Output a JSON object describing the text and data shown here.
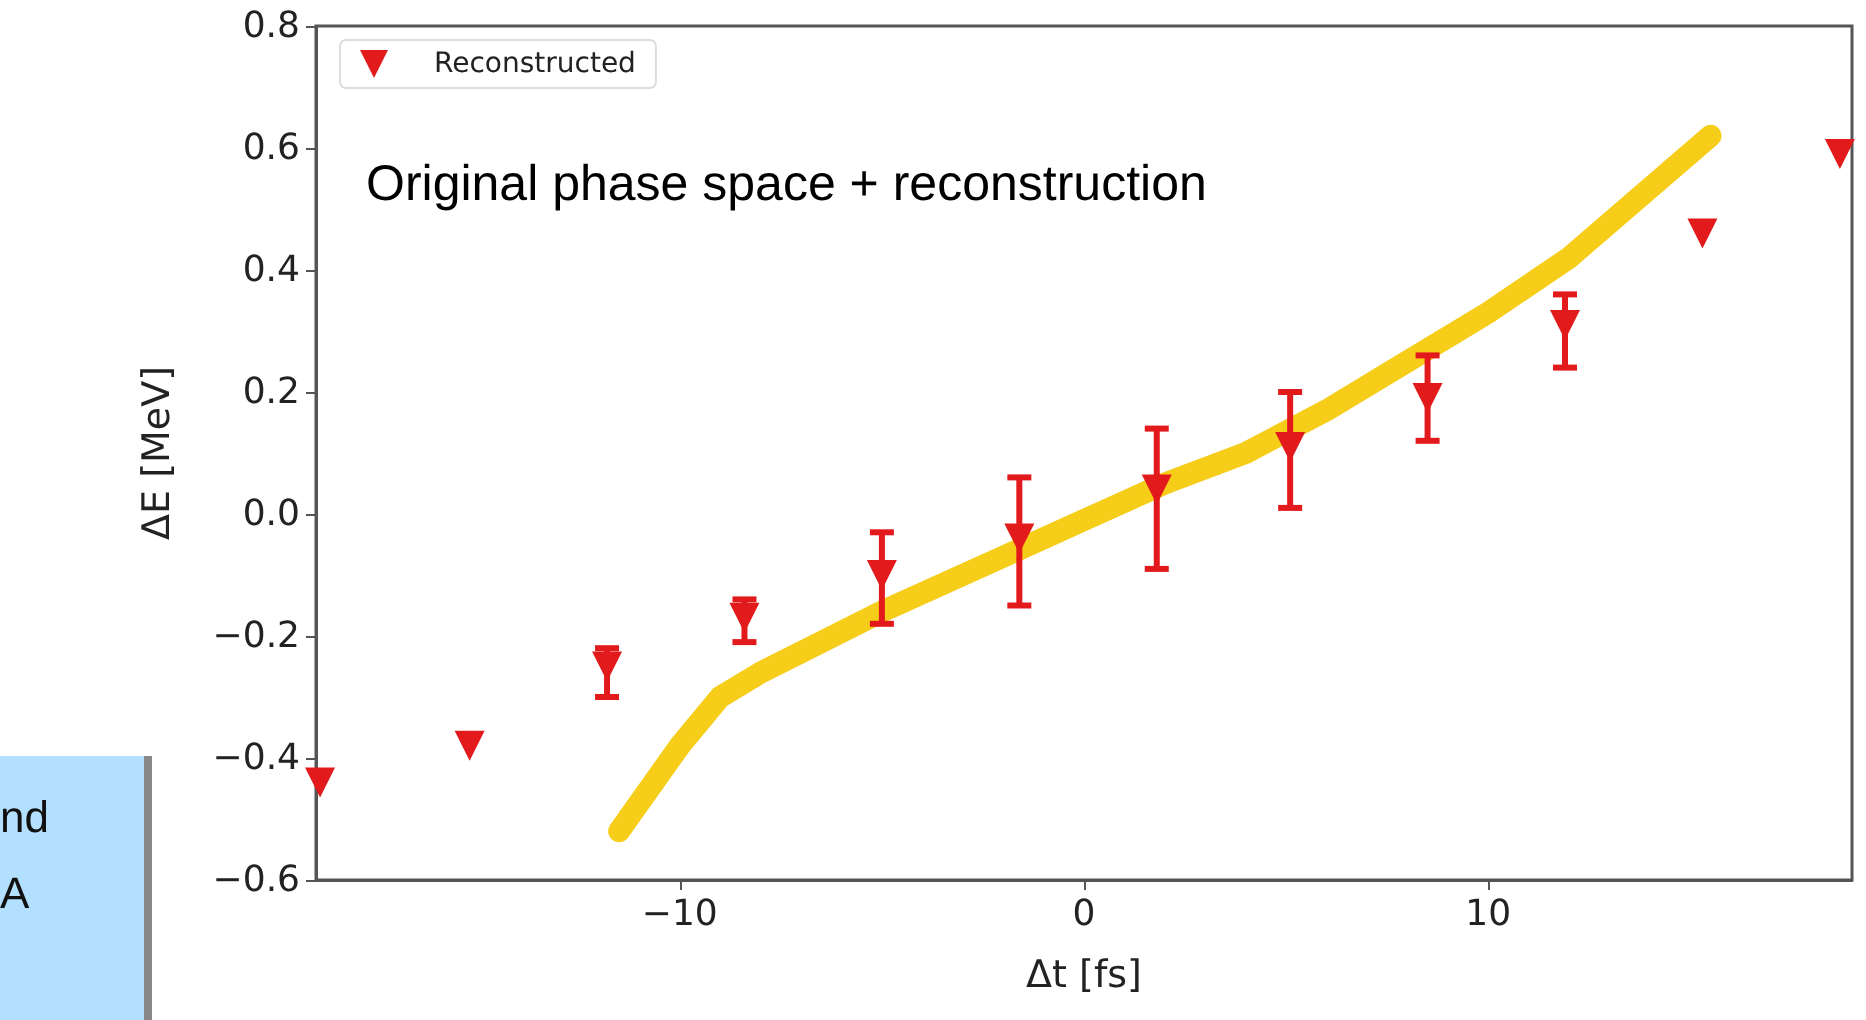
{
  "chart_data": {
    "type": "scatter",
    "xlabel": "Δt [fs]",
    "ylabel": "ΔE [MeV]",
    "xlim": [
      -19,
      19
    ],
    "ylim": [
      -0.6,
      0.8
    ],
    "xticks": [
      {
        "value": -10,
        "label": "−10"
      },
      0,
      10
    ],
    "yticks": [
      {
        "value": -0.6,
        "label": "−0.6"
      },
      {
        "value": -0.4,
        "label": "−0.4"
      },
      {
        "value": -0.2,
        "label": "−0.2"
      },
      {
        "value": 0,
        "label": "0.0"
      },
      {
        "value": 0.2,
        "label": "0.2"
      },
      {
        "value": 0.4,
        "label": "0.4"
      },
      {
        "value": 0.6,
        "label": "0.6"
      },
      {
        "value": 0.8,
        "label": "0.8"
      }
    ],
    "grid": false,
    "legend": "top left",
    "annotations": [
      "Original phase space + reconstruction",
      "nd",
      "A"
    ],
    "series": [
      {
        "type": "line",
        "color": "#f5c800",
        "marker": "none",
        "line_style": "solid",
        "x": [
          -11.5,
          -10,
          -9,
          -8,
          -5,
          -2,
          0,
          2,
          4,
          6,
          8,
          10,
          12,
          15.5
        ],
        "values": [
          -0.52,
          -0.38,
          -0.3,
          -0.26,
          -0.16,
          -0.07,
          -0.01,
          0.05,
          0.1,
          0.17,
          0.25,
          0.33,
          0.42,
          0.62
        ]
      },
      {
        "type": "scatter",
        "name": "Reconstructed",
        "color": "#e31a1c",
        "marker": "triangle",
        "x": [
          -18.9,
          -15.2,
          -11.8,
          -8.4,
          -5.0,
          -1.6,
          1.8,
          5.1,
          8.5,
          11.9,
          15.3,
          18.7
        ],
        "values": [
          -0.44,
          -0.38,
          -0.25,
          -0.17,
          -0.1,
          -0.04,
          0.04,
          0.11,
          0.19,
          0.31,
          0.46,
          0.59
        ],
        "errors": [
          null,
          null,
          [
            -0.3,
            -0.22
          ],
          [
            -0.21,
            -0.14
          ],
          [
            -0.18,
            -0.03
          ],
          [
            -0.15,
            0.06
          ],
          [
            -0.09,
            0.14
          ],
          [
            0.01,
            0.2
          ],
          [
            0.12,
            0.26
          ],
          [
            0.24,
            0.36
          ],
          null,
          null
        ]
      }
    ]
  }
}
